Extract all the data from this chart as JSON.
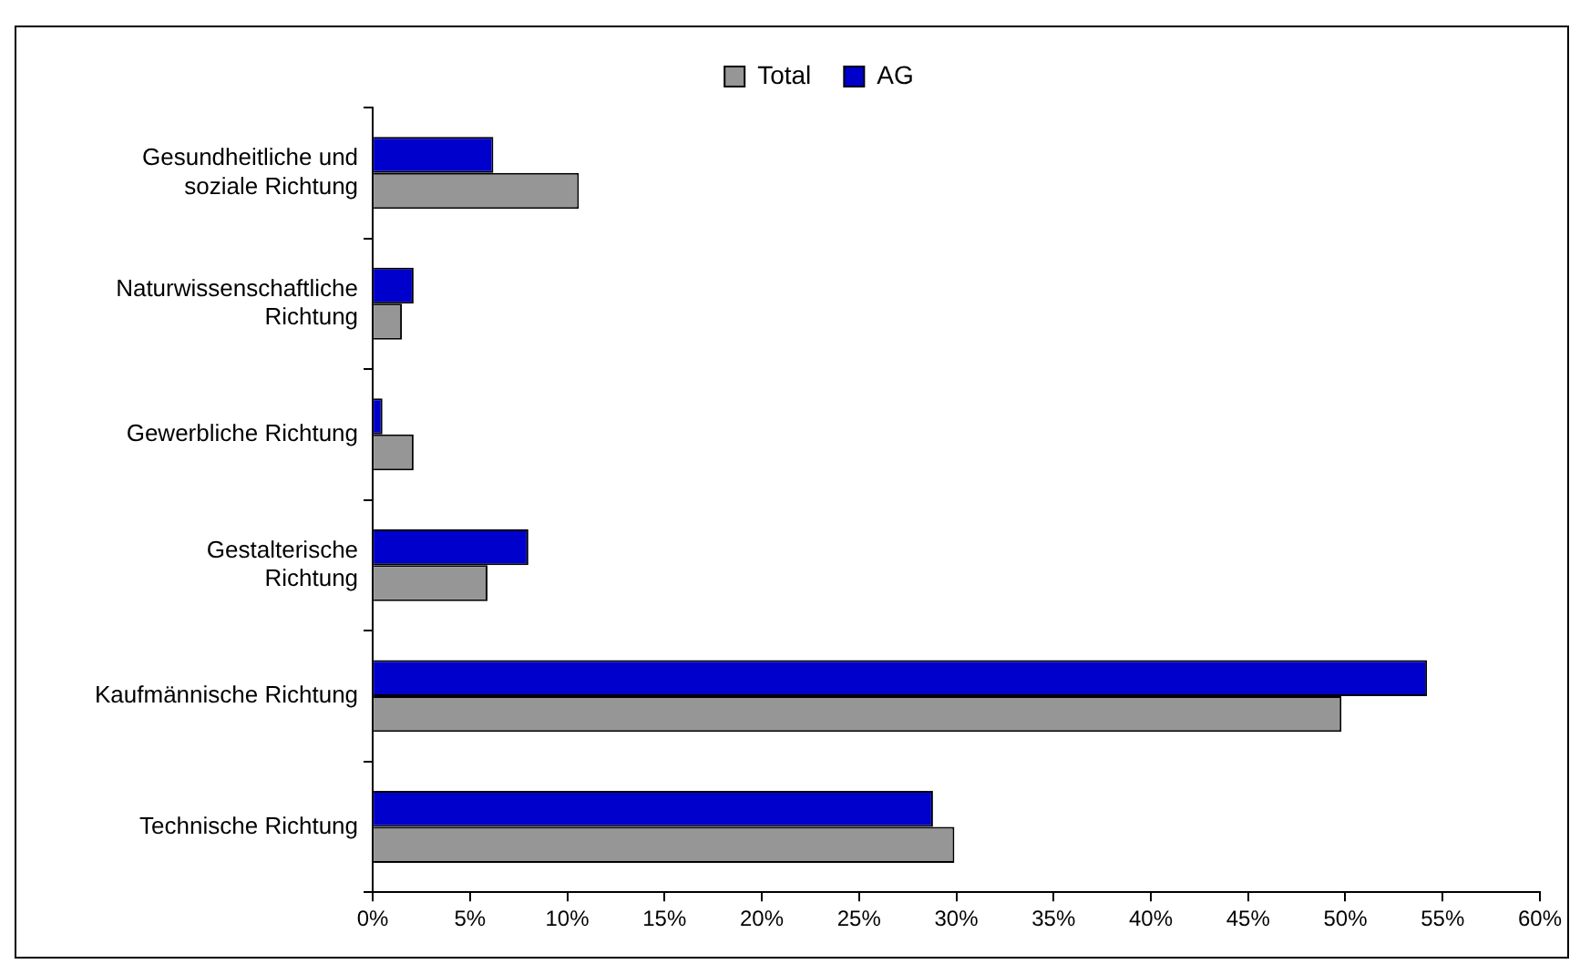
{
  "chart_data": {
    "type": "bar",
    "orientation": "horizontal",
    "categories": [
      "Gesundheitliche und soziale Richtung",
      "Naturwissenschaftliche Richtung",
      "Gewerbliche Richtung",
      "Gestalterische Richtung",
      "Kaufmännische Richtung",
      "Technische Richtung"
    ],
    "series": [
      {
        "name": "Total",
        "color": "#969696",
        "values": [
          10.6,
          1.5,
          2.1,
          5.9,
          49.8,
          29.9
        ]
      },
      {
        "name": "AG",
        "color": "#0000cc",
        "values": [
          6.2,
          2.1,
          0.5,
          8.0,
          54.2,
          28.8
        ]
      }
    ],
    "xlim": [
      0,
      60
    ],
    "xticks": [
      {
        "value": 0,
        "label": "0%"
      },
      {
        "value": 5,
        "label": "5%"
      },
      {
        "value": 10,
        "label": "10%"
      },
      {
        "value": 15,
        "label": "15%"
      },
      {
        "value": 20,
        "label": "20%"
      },
      {
        "value": 25,
        "label": "25%"
      },
      {
        "value": 30,
        "label": "30%"
      },
      {
        "value": 35,
        "label": "35%"
      },
      {
        "value": 40,
        "label": "40%"
      },
      {
        "value": 45,
        "label": "45%"
      },
      {
        "value": 50,
        "label": "50%"
      },
      {
        "value": 55,
        "label": "55%"
      },
      {
        "value": 60,
        "label": "60%"
      }
    ],
    "grid": false,
    "legend": "top"
  }
}
